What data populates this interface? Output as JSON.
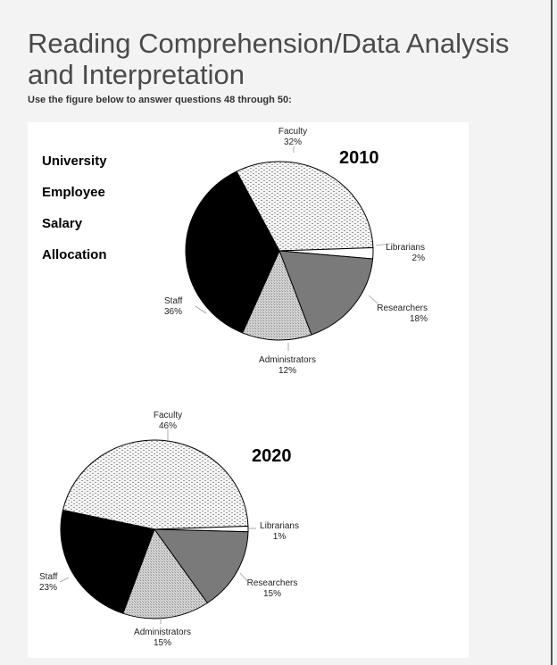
{
  "page": {
    "title": "Reading Comprehension/Data Analysis and Interpretation",
    "instruction": "Use the figure below to answer questions 48 through 50:"
  },
  "figure": {
    "side_title_lines": [
      "University",
      "Employee",
      "Salary",
      "Allocation"
    ]
  },
  "chart_data": [
    {
      "type": "pie",
      "title": "2010",
      "slices": [
        {
          "label": "Faculty",
          "value": 32,
          "value_label": "32%",
          "fill": "dotted-light"
        },
        {
          "label": "Librarians",
          "value": 2,
          "value_label": "2%",
          "fill": "#ffffff"
        },
        {
          "label": "Researchers",
          "value": 18,
          "value_label": "18%",
          "fill": "#7a7a7a"
        },
        {
          "label": "Administrators",
          "value": 12,
          "value_label": "12%",
          "fill": "stippled"
        },
        {
          "label": "Staff",
          "value": 36,
          "value_label": "36%",
          "fill": "#000000"
        }
      ],
      "unit": "%"
    },
    {
      "type": "pie",
      "title": "2020",
      "slices": [
        {
          "label": "Faculty",
          "value": 46,
          "value_label": "46%",
          "fill": "dotted-light"
        },
        {
          "label": "Librarians",
          "value": 1,
          "value_label": "1%",
          "fill": "#ffffff"
        },
        {
          "label": "Researchers",
          "value": 15,
          "value_label": "15%",
          "fill": "#7a7a7a"
        },
        {
          "label": "Administrators",
          "value": 15,
          "value_label": "15%",
          "fill": "stippled"
        },
        {
          "label": "Staff",
          "value": 23,
          "value_label": "23%",
          "fill": "#000000"
        }
      ],
      "unit": "%"
    }
  ]
}
